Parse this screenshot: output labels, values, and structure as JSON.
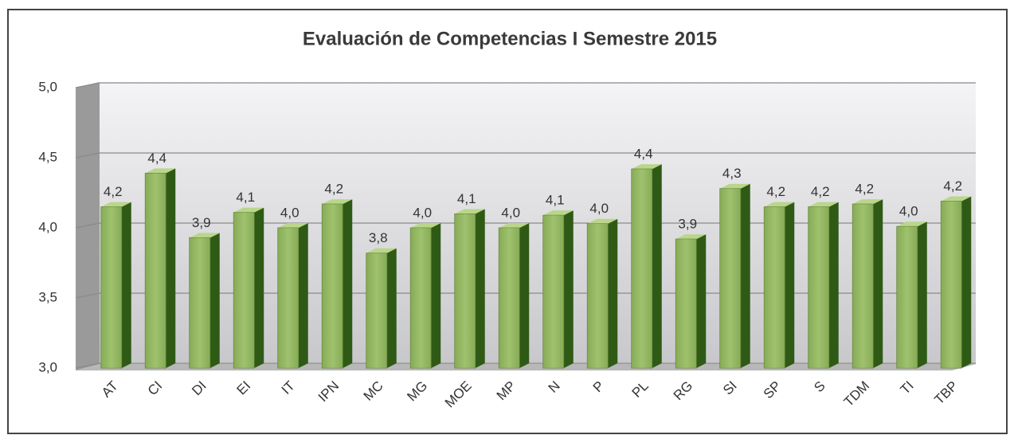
{
  "chart_data": {
    "type": "bar3d",
    "title": "Evaluación de Competencias I Semestre 2015",
    "categories": [
      "AT",
      "CI",
      "DI",
      "EI",
      "IT",
      "IPN",
      "MC",
      "MG",
      "MOE",
      "MP",
      "N",
      "P",
      "PL",
      "RG",
      "SI",
      "SP",
      "S",
      "TDM",
      "TI",
      "TBP"
    ],
    "values": [
      4.15,
      4.39,
      3.93,
      4.11,
      4.0,
      4.17,
      3.82,
      4.0,
      4.1,
      4.0,
      4.09,
      4.03,
      4.42,
      3.92,
      4.28,
      4.15,
      4.15,
      4.17,
      4.01,
      4.19
    ],
    "value_labels": [
      "4,2",
      "4,4",
      "3,9",
      "4,1",
      "4,0",
      "4,2",
      "3,8",
      "4,0",
      "4,1",
      "4,0",
      "4,1",
      "4,0",
      "4,4",
      "3,9",
      "4,3",
      "4,2",
      "4,2",
      "4,2",
      "4,0",
      "4,2"
    ],
    "color": "#93b862",
    "ylim": [
      3,
      5
    ],
    "yticks": [
      {
        "value": 3,
        "label": "3,0"
      },
      {
        "value": 3.5,
        "label": "3,5"
      },
      {
        "value": 4,
        "label": "4,0"
      },
      {
        "value": 4.5,
        "label": "4,5"
      },
      {
        "value": 5,
        "label": "5,0"
      }
    ],
    "grid": true
  }
}
